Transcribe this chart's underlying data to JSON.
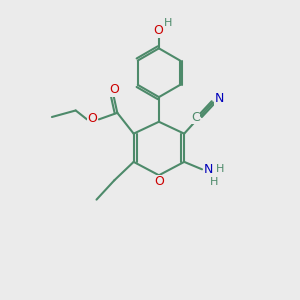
{
  "bg_color": "#ebebeb",
  "bond_color": "#4d8a6a",
  "o_color": "#cc0000",
  "n_color": "#0000bb",
  "h_color": "#4d8a6a",
  "line_width": 1.5,
  "figsize": [
    3.0,
    3.0
  ],
  "dpi": 100,
  "xlim": [
    0,
    10
  ],
  "ylim": [
    0,
    10
  ]
}
